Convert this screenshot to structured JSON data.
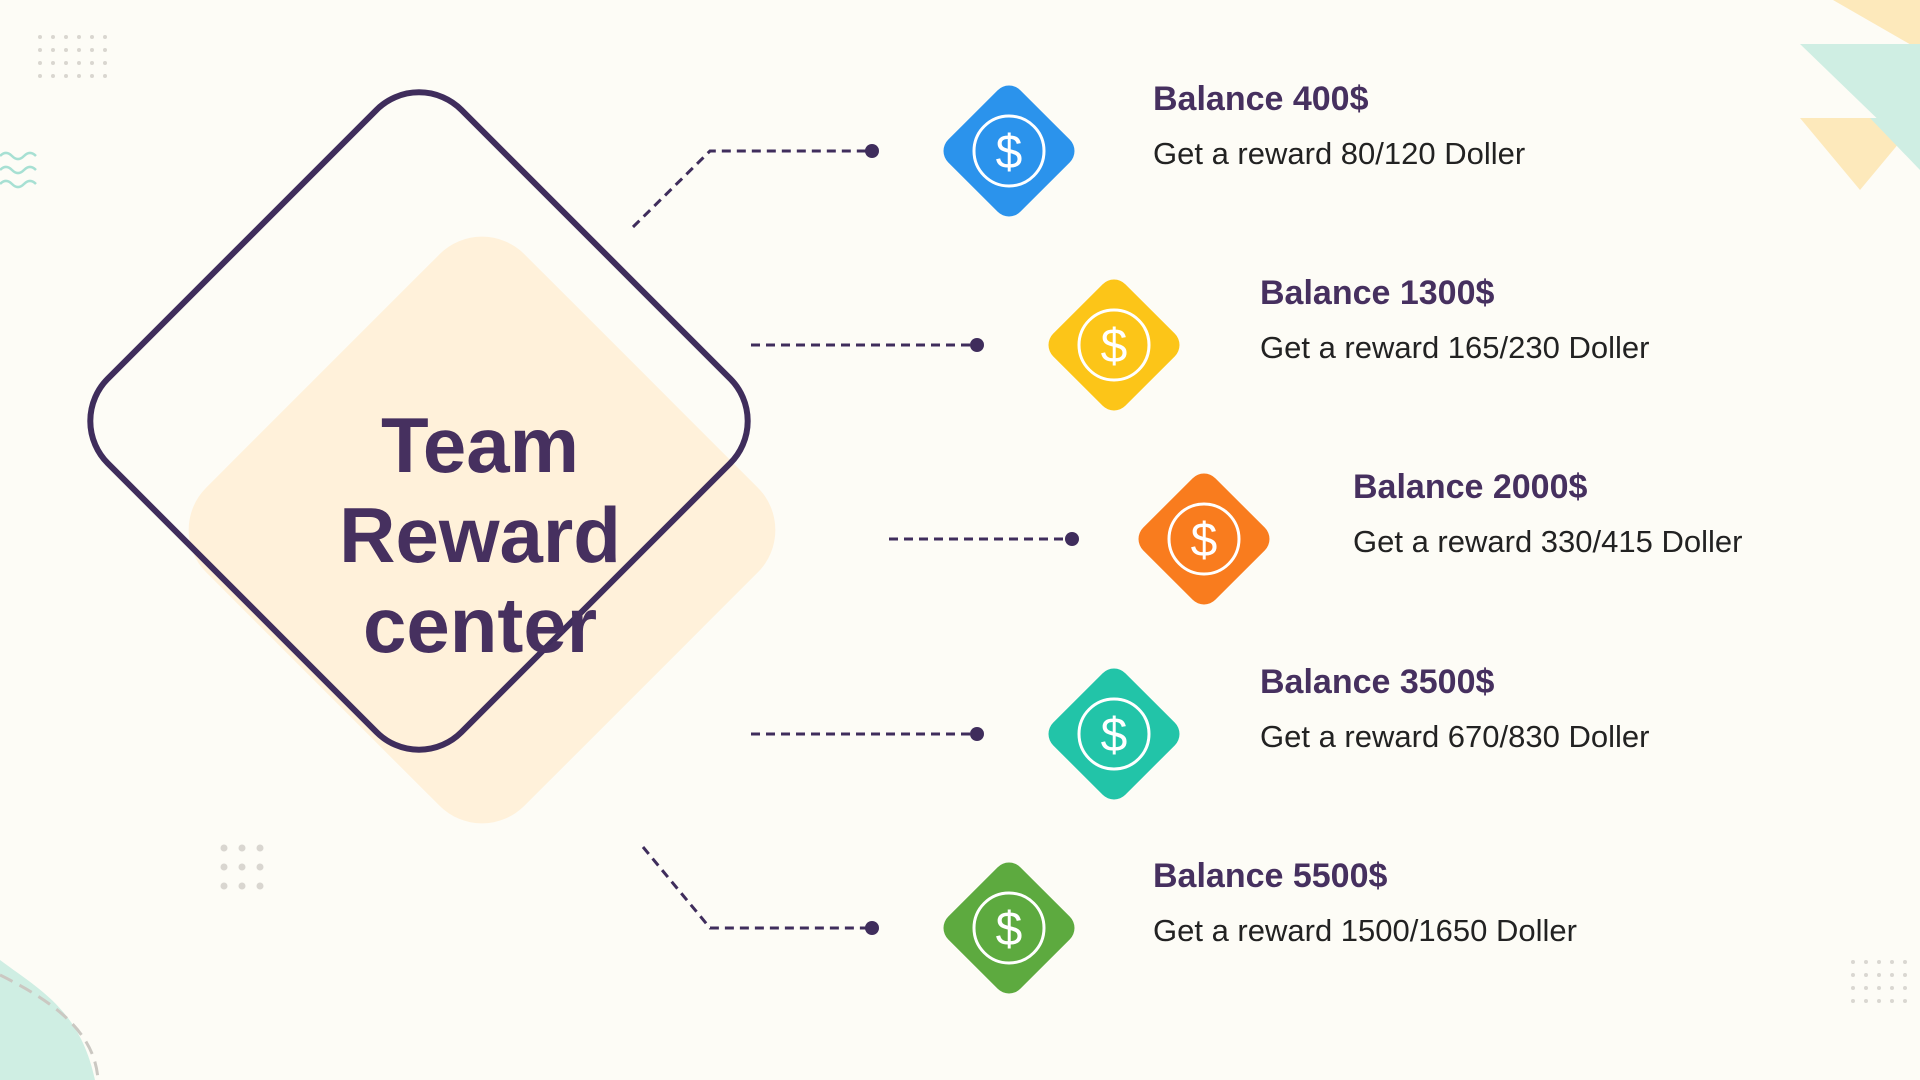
{
  "title": {
    "lines": [
      "Team",
      "Reward",
      "center"
    ]
  },
  "tiers": [
    {
      "title": "Balance 400$",
      "description": "Get a reward 80/120 Doller",
      "color": "#2b93ec",
      "icon": "dollar-circle-icon"
    },
    {
      "title": "Balance 1300$",
      "description": "Get a reward 165/230 Doller",
      "color": "#fcc518",
      "icon": "dollar-circle-icon"
    },
    {
      "title": "Balance 2000$",
      "description": "Get a reward 330/415 Doller",
      "color": "#f97c1e",
      "icon": "dollar-circle-icon"
    },
    {
      "title": "Balance 3500$",
      "description": "Get a reward 670/830 Doller",
      "color": "#22c4a8",
      "icon": "dollar-circle-icon"
    },
    {
      "title": "Balance 5500$",
      "description": "Get a reward 1500/1650 Doller",
      "color": "#5daa3f",
      "icon": "dollar-circle-icon"
    }
  ],
  "colors": {
    "text_primary": "#46305f",
    "background": "#fdfcf6",
    "diamond_fill": "#fff1da",
    "diamond_stroke": "#3f2d5c",
    "connector": "#3f2d5c"
  }
}
